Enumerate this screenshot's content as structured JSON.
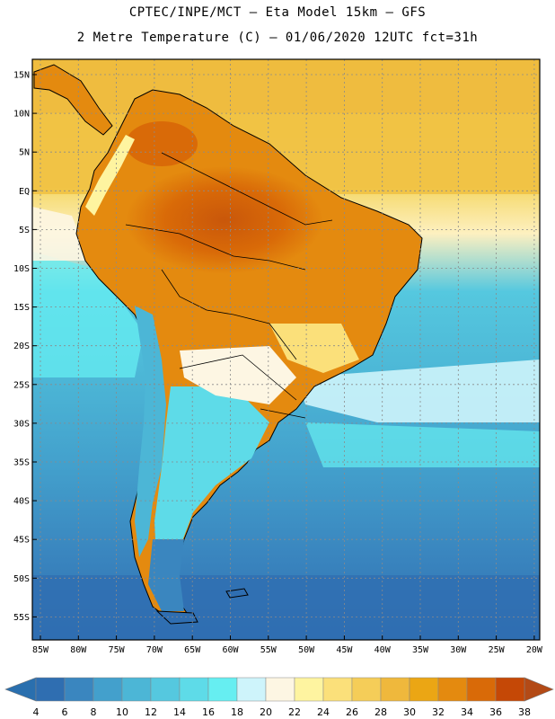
{
  "header": {
    "title_line1": "CPTEC/INPE/MCT –  Eta Model 15km – GFS",
    "title_line2": "2 Metre Temperature (C) – 01/06/2020 12UTC fct=31h"
  },
  "map": {
    "lat_labels": [
      "15N",
      "10N",
      "5N",
      "EQ",
      "5S",
      "10S",
      "15S",
      "20S",
      "25S",
      "30S",
      "35S",
      "40S",
      "45S",
      "50S",
      "55S"
    ],
    "lon_labels": [
      "85W",
      "80W",
      "75W",
      "70W",
      "65W",
      "60W",
      "55W",
      "50W",
      "45W",
      "40W",
      "35W",
      "30W",
      "25W",
      "20W"
    ],
    "gridline_color": "#8a8a8a"
  },
  "colorbar": {
    "labels": [
      "4",
      "6",
      "8",
      "10",
      "12",
      "14",
      "16",
      "18",
      "20",
      "22",
      "24",
      "26",
      "28",
      "30",
      "32",
      "34",
      "36",
      "38"
    ],
    "low_arrow_color": "#2a6fae",
    "high_arrow_color": "#b34a16",
    "colors": [
      "#2f6eb1",
      "#3a86bf",
      "#43a0cc",
      "#4cb6d6",
      "#55c8df",
      "#5edbe8",
      "#66eef1",
      "#cef4fb",
      "#fdf6e3",
      "#fef4a0",
      "#fbe07a",
      "#f5cd58",
      "#efb83c",
      "#eba614",
      "#e48a0f",
      "#d96a08",
      "#c54806"
    ]
  }
}
